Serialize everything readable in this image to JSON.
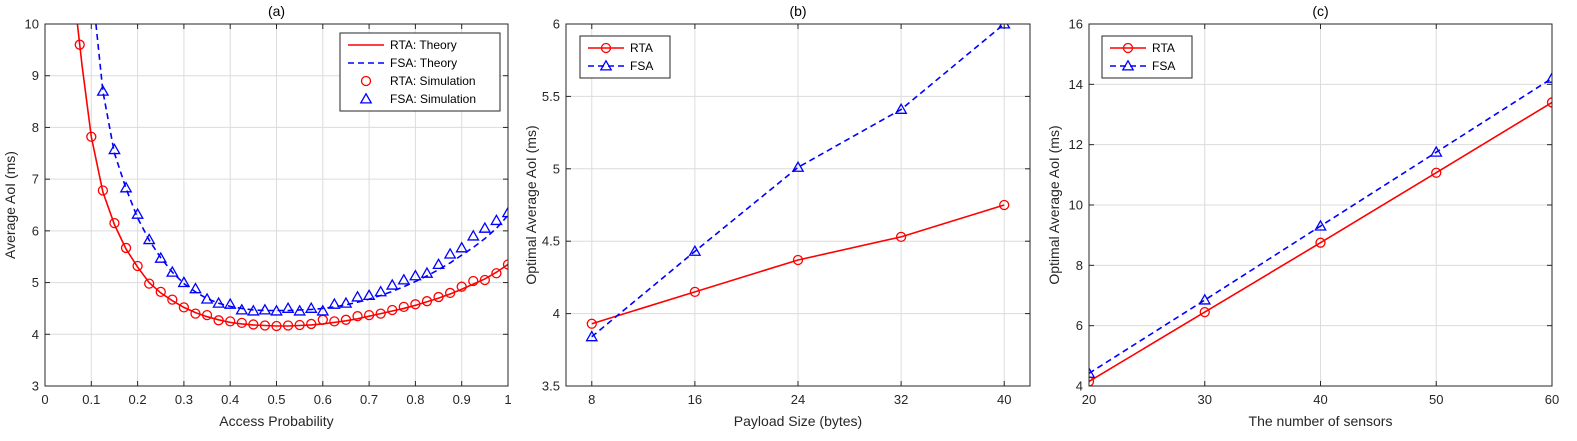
{
  "colors": {
    "red": "#ff0000",
    "blue": "#0000ff",
    "grid": "#dcdcdc",
    "axis": "#262626"
  },
  "chart_data": [
    {
      "type": "line",
      "title": "(a)",
      "xlabel": "Access Probability",
      "ylabel": "Average AoI (ms)",
      "xlim": [
        0,
        1
      ],
      "ylim": [
        3,
        10
      ],
      "xticks": [
        0,
        0.1,
        0.2,
        0.3,
        0.4,
        0.5,
        0.6,
        0.7,
        0.8,
        0.9,
        1
      ],
      "xtick_labels": [
        "0",
        "0.1",
        "0.2",
        "0.3",
        "0.4",
        "0.5",
        "0.6",
        "0.7",
        "0.8",
        "0.9",
        "1"
      ],
      "yticks": [
        3,
        4,
        5,
        6,
        7,
        8,
        9,
        10
      ],
      "ytick_labels": [
        "3",
        "4",
        "5",
        "6",
        "7",
        "8",
        "9",
        "10"
      ],
      "grid": true,
      "legend_position": "top-right",
      "series": [
        {
          "name": "RTA: Theory",
          "color": "red",
          "style": "solid",
          "marker": "none",
          "x": [
            0.07,
            0.08,
            0.1,
            0.125,
            0.15,
            0.175,
            0.2,
            0.225,
            0.25,
            0.275,
            0.3,
            0.325,
            0.35,
            0.375,
            0.4,
            0.425,
            0.45,
            0.475,
            0.5,
            0.525,
            0.55,
            0.575,
            0.6,
            0.625,
            0.65,
            0.675,
            0.7,
            0.725,
            0.75,
            0.775,
            0.8,
            0.825,
            0.85,
            0.875,
            0.9,
            0.925,
            0.95,
            0.975,
            1.0
          ],
          "y": [
            10.0,
            9.2,
            7.82,
            6.75,
            6.12,
            5.65,
            5.3,
            5.0,
            4.8,
            4.65,
            4.52,
            4.42,
            4.34,
            4.28,
            4.23,
            4.2,
            4.18,
            4.17,
            4.16,
            4.16,
            4.17,
            4.18,
            4.2,
            4.23,
            4.26,
            4.3,
            4.35,
            4.4,
            4.45,
            4.5,
            4.56,
            4.63,
            4.7,
            4.78,
            4.87,
            4.97,
            5.07,
            5.2,
            5.35
          ]
        },
        {
          "name": "FSA: Theory",
          "color": "blue",
          "style": "dashed",
          "marker": "none",
          "x": [
            0.11,
            0.125,
            0.15,
            0.175,
            0.2,
            0.225,
            0.25,
            0.275,
            0.3,
            0.325,
            0.35,
            0.375,
            0.4,
            0.425,
            0.45,
            0.475,
            0.5,
            0.525,
            0.55,
            0.575,
            0.6,
            0.625,
            0.65,
            0.675,
            0.7,
            0.725,
            0.75,
            0.775,
            0.8,
            0.825,
            0.85,
            0.875,
            0.9,
            0.925,
            0.95,
            0.975,
            1.0
          ],
          "y": [
            10.0,
            8.7,
            7.5,
            6.82,
            6.25,
            5.82,
            5.48,
            5.2,
            4.98,
            4.82,
            4.69,
            4.6,
            4.54,
            4.5,
            4.47,
            4.46,
            4.46,
            4.46,
            4.47,
            4.48,
            4.5,
            4.53,
            4.57,
            4.62,
            4.68,
            4.75,
            4.83,
            4.92,
            5.02,
            5.13,
            5.25,
            5.38,
            5.53,
            5.68,
            5.85,
            6.05,
            6.3
          ]
        },
        {
          "name": "RTA: Simulation",
          "color": "red",
          "style": "none",
          "marker": "circle",
          "x": [
            0.075,
            0.1,
            0.125,
            0.15,
            0.175,
            0.2,
            0.225,
            0.25,
            0.275,
            0.3,
            0.325,
            0.35,
            0.375,
            0.4,
            0.425,
            0.45,
            0.475,
            0.5,
            0.525,
            0.55,
            0.575,
            0.6,
            0.625,
            0.65,
            0.675,
            0.7,
            0.725,
            0.75,
            0.775,
            0.8,
            0.825,
            0.85,
            0.875,
            0.9,
            0.925,
            0.95,
            0.975,
            1.0
          ],
          "y": [
            9.6,
            7.82,
            6.78,
            6.15,
            5.67,
            5.32,
            4.98,
            4.82,
            4.67,
            4.52,
            4.4,
            4.37,
            4.27,
            4.25,
            4.22,
            4.19,
            4.17,
            4.16,
            4.17,
            4.18,
            4.2,
            4.28,
            4.25,
            4.28,
            4.35,
            4.37,
            4.4,
            4.47,
            4.53,
            4.58,
            4.64,
            4.72,
            4.8,
            4.92,
            5.03,
            5.05,
            5.18,
            5.35
          ]
        },
        {
          "name": "FSA: Simulation",
          "color": "blue",
          "style": "none",
          "marker": "triangle",
          "x": [
            0.125,
            0.15,
            0.175,
            0.2,
            0.225,
            0.25,
            0.275,
            0.3,
            0.325,
            0.35,
            0.375,
            0.4,
            0.425,
            0.45,
            0.475,
            0.5,
            0.525,
            0.55,
            0.575,
            0.6,
            0.625,
            0.65,
            0.675,
            0.7,
            0.725,
            0.75,
            0.775,
            0.8,
            0.825,
            0.85,
            0.875,
            0.9,
            0.925,
            0.95,
            0.975,
            1.0
          ],
          "y": [
            8.7,
            7.57,
            6.83,
            6.32,
            5.83,
            5.47,
            5.2,
            5.0,
            4.88,
            4.68,
            4.6,
            4.58,
            4.47,
            4.45,
            4.47,
            4.45,
            4.5,
            4.45,
            4.5,
            4.45,
            4.58,
            4.6,
            4.72,
            4.75,
            4.82,
            4.95,
            5.05,
            5.13,
            5.18,
            5.35,
            5.55,
            5.67,
            5.9,
            6.05,
            6.2,
            6.35
          ]
        }
      ]
    },
    {
      "type": "line",
      "title": "(b)",
      "xlabel": "Payload Size (bytes)",
      "ylabel": "Optimal Average AoI (ms)",
      "xlim": [
        6,
        42
      ],
      "ylim": [
        3.5,
        6
      ],
      "xticks": [
        8,
        16,
        24,
        32,
        40
      ],
      "xtick_labels": [
        "8",
        "16",
        "24",
        "32",
        "40"
      ],
      "yticks": [
        3.5,
        4,
        4.5,
        5,
        5.5,
        6
      ],
      "ytick_labels": [
        "3.5",
        "4",
        "4.5",
        "5",
        "5.5",
        "6"
      ],
      "grid": true,
      "legend_position": "top-left",
      "series": [
        {
          "name": "RTA",
          "color": "red",
          "style": "solid",
          "marker": "circle",
          "x": [
            8,
            16,
            24,
            32,
            40
          ],
          "y": [
            3.93,
            4.15,
            4.37,
            4.53,
            4.75
          ]
        },
        {
          "name": "FSA",
          "color": "blue",
          "style": "dashed",
          "marker": "triangle",
          "x": [
            8,
            16,
            24,
            32,
            40
          ],
          "y": [
            3.84,
            4.43,
            5.01,
            5.41,
            6.0
          ]
        }
      ]
    },
    {
      "type": "line",
      "title": "(c)",
      "xlabel": "The number of sensors",
      "ylabel": "Optimal Average AoI (ms)",
      "xlim": [
        20,
        60
      ],
      "ylim": [
        4,
        16
      ],
      "xticks": [
        20,
        30,
        40,
        50,
        60
      ],
      "xtick_labels": [
        "20",
        "30",
        "40",
        "50",
        "60"
      ],
      "yticks": [
        4,
        6,
        8,
        10,
        12,
        14,
        16
      ],
      "ytick_labels": [
        "4",
        "6",
        "8",
        "10",
        "12",
        "14",
        "16"
      ],
      "grid": true,
      "legend_position": "top-left",
      "series": [
        {
          "name": "RTA",
          "color": "red",
          "style": "solid",
          "marker": "circle",
          "x": [
            20,
            30,
            40,
            50,
            60
          ],
          "y": [
            4.15,
            6.45,
            8.75,
            11.07,
            13.4
          ]
        },
        {
          "name": "FSA",
          "color": "blue",
          "style": "dashed",
          "marker": "triangle",
          "x": [
            20,
            30,
            40,
            50,
            60
          ],
          "y": [
            4.42,
            6.85,
            9.3,
            11.75,
            14.2
          ]
        }
      ]
    }
  ]
}
